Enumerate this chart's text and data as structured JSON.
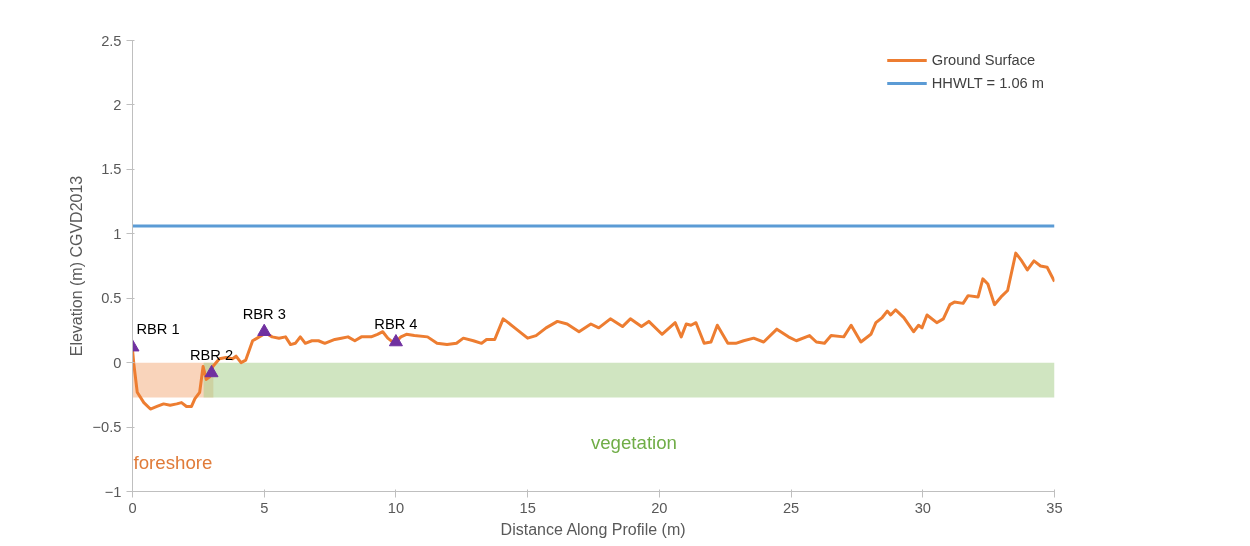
{
  "chart_data": {
    "type": "line",
    "xlabel": "Distance Along Profile (m)",
    "ylabel": "Elevation (m) CGVD2013",
    "xlim": [
      0,
      35
    ],
    "xticks": [
      0,
      5,
      10,
      15,
      20,
      25,
      30,
      35
    ],
    "ylim": [
      -1,
      2.5
    ],
    "yticks": [
      -1,
      -0.5,
      0,
      0.5,
      1,
      1.5,
      2,
      2.5
    ],
    "legend": "top right",
    "series": [
      {
        "type": "area",
        "color": "#f4b183",
        "x": [
          0,
          3.07
        ],
        "values": [
          -0.27,
          -0.27
        ]
      },
      {
        "type": "area",
        "color": "#a9d08e",
        "x": [
          2.7,
          35
        ],
        "values": [
          -0.27,
          -0.27
        ]
      },
      {
        "name": "Ground Surface",
        "color": "#ed7d31",
        "x": [
          0,
          0.05,
          0.18,
          0.43,
          0.68,
          0.93,
          1.18,
          1.43,
          1.68,
          1.86,
          2.05,
          2.24,
          2.37,
          2.55,
          2.68,
          2.8,
          2.93,
          3.05,
          3.3,
          3.55,
          3.8,
          3.93,
          4.12,
          4.3,
          4.56,
          4.81,
          5.06,
          5.3,
          5.56,
          5.81,
          6.0,
          6.18,
          6.37,
          6.56,
          6.81,
          7.06,
          7.3,
          7.68,
          7.93,
          8.18,
          8.44,
          8.69,
          9.06,
          9.3,
          9.5,
          9.69,
          9.94,
          10.19,
          10.4,
          10.7,
          11.2,
          11.56,
          11.94,
          12.3,
          12.56,
          12.94,
          13.25,
          13.44,
          13.75,
          14.07,
          14.2,
          14.45,
          15.0,
          15.32,
          15.7,
          16.13,
          16.5,
          16.95,
          17.4,
          17.7,
          18.14,
          18.6,
          18.9,
          19.32,
          19.6,
          20.1,
          20.6,
          20.83,
          21.02,
          21.2,
          21.39,
          21.7,
          21.96,
          22.2,
          22.6,
          22.9,
          23.2,
          23.58,
          23.96,
          24.46,
          24.9,
          25.2,
          25.7,
          25.96,
          26.27,
          26.52,
          27.0,
          27.28,
          27.65,
          28.03,
          28.22,
          28.46,
          28.65,
          28.78,
          28.97,
          29.28,
          29.65,
          29.84,
          29.97,
          30.16,
          30.53,
          30.78,
          31.03,
          31.2,
          31.53,
          31.72,
          32.1,
          32.28,
          32.47,
          32.72,
          32.97,
          33.22,
          33.53,
          33.72,
          33.97,
          34.22,
          34.47,
          34.72,
          35.0
        ],
        "values": [
          0.1,
          -0.01,
          -0.23,
          -0.31,
          -0.36,
          -0.34,
          -0.32,
          -0.33,
          -0.32,
          -0.31,
          -0.34,
          -0.34,
          -0.28,
          -0.23,
          -0.03,
          -0.13,
          -0.11,
          -0.03,
          0.03,
          0.04,
          0.03,
          0.05,
          0.0,
          0.02,
          0.17,
          0.2,
          0.23,
          0.2,
          0.19,
          0.2,
          0.14,
          0.15,
          0.2,
          0.15,
          0.17,
          0.17,
          0.15,
          0.18,
          0.19,
          0.2,
          0.17,
          0.2,
          0.2,
          0.22,
          0.24,
          0.19,
          0.15,
          0.2,
          0.22,
          0.21,
          0.2,
          0.15,
          0.14,
          0.15,
          0.19,
          0.17,
          0.15,
          0.18,
          0.18,
          0.34,
          0.32,
          0.28,
          0.19,
          0.21,
          0.27,
          0.32,
          0.3,
          0.24,
          0.3,
          0.27,
          0.34,
          0.28,
          0.34,
          0.28,
          0.32,
          0.22,
          0.31,
          0.2,
          0.3,
          0.29,
          0.31,
          0.15,
          0.16,
          0.29,
          0.15,
          0.15,
          0.17,
          0.19,
          0.16,
          0.26,
          0.2,
          0.17,
          0.21,
          0.16,
          0.15,
          0.21,
          0.2,
          0.29,
          0.16,
          0.22,
          0.31,
          0.35,
          0.4,
          0.37,
          0.41,
          0.35,
          0.24,
          0.29,
          0.27,
          0.37,
          0.31,
          0.34,
          0.45,
          0.47,
          0.46,
          0.52,
          0.51,
          0.65,
          0.61,
          0.45,
          0.51,
          0.56,
          0.85,
          0.8,
          0.72,
          0.79,
          0.75,
          0.74,
          0.63
        ]
      },
      {
        "type": "scatter",
        "marker": "triangle",
        "color": "#7030a0",
        "x": [
          0,
          3,
          5,
          10
        ],
        "values": [
          0.12,
          -0.08,
          0.24,
          0.16
        ]
      }
    ],
    "ref_lines": [
      {
        "axis": "y",
        "value": 1.06,
        "label": "HHWLT = 1.06 m",
        "color": "#5b9bd5"
      }
    ],
    "annotations": [
      "RBR 1",
      "RBR 2",
      "RBR 3",
      "RBR 4",
      "foreshore",
      "vegetation"
    ]
  }
}
